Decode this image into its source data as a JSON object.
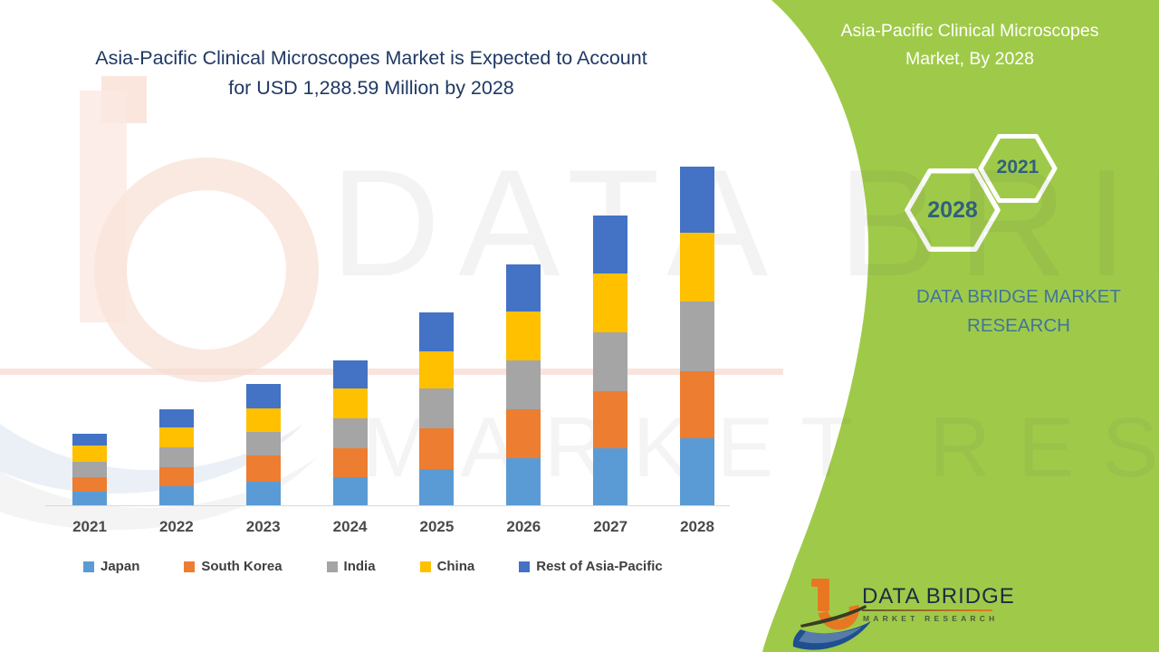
{
  "header": {
    "title_line1": "Asia-Pacific Clinical Microscopes Market is Expected to Account",
    "title_line2": "for USD 1,288.59 Million by 2028",
    "color": "#1F3864"
  },
  "panel": {
    "bg_color": "#9FCA49",
    "title_line1": "Asia-Pacific Clinical Microscopes",
    "title_line2": "Market, By 2028",
    "hexagons": [
      {
        "year": "2021"
      },
      {
        "year": "2028"
      }
    ],
    "hexagon_text_color": "#2F607F",
    "brand_line1": "DATA BRIDGE MARKET",
    "brand_line2": "RESEARCH",
    "brand_color": "#41759B"
  },
  "watermark": {
    "line1": "DATA BRIDGE",
    "line2": "MARKET RESEARCH"
  },
  "footer_logo": {
    "name": "DATA BRIDGE",
    "sub": "MARKET RESEARCH"
  },
  "chart_data": {
    "type": "bar",
    "stacked": true,
    "title": "Asia-Pacific Clinical Microscopes Market is Expected to Account for USD 1,288.59 Million by 2028",
    "unit": "USD Million",
    "categories": [
      "2021",
      "2022",
      "2023",
      "2024",
      "2025",
      "2026",
      "2027",
      "2028"
    ],
    "series": [
      {
        "name": "Japan",
        "color": "#5B9BD5",
        "values": [
          51.7,
          71.4,
          88.3,
          107.9,
          137.9,
          179.3,
          216.2,
          255.2
        ]
      },
      {
        "name": "South Korea",
        "color": "#ED7D31",
        "values": [
          55.2,
          74.8,
          101.4,
          110.3,
          155.2,
          186.2,
          218.3,
          256.5
        ]
      },
      {
        "name": "India",
        "color": "#A5A5A5",
        "values": [
          58.6,
          74.8,
          88.3,
          111.4,
          153.1,
          185.2,
          224.1,
          262.1
        ]
      },
      {
        "name": "China",
        "color": "#FFC000",
        "values": [
          61.0,
          75.9,
          89.7,
          115.2,
          141.4,
          187.2,
          222.1,
          262.1
        ]
      },
      {
        "name": "Rest of Asia-Pacific",
        "color": "#4472C4",
        "values": [
          44.8,
          69.0,
          94.5,
          106.9,
          146.9,
          179.3,
          221.7,
          252.8
        ]
      }
    ],
    "totals": [
      271.4,
      365.9,
      462.2,
      551.7,
      734.5,
      917.2,
      1102.4,
      1288.59
    ],
    "xlabel": "",
    "ylabel": "",
    "ylim": [
      0,
      1400
    ],
    "value_axis_visible": false,
    "gridlines": false,
    "legend_position": "bottom"
  }
}
